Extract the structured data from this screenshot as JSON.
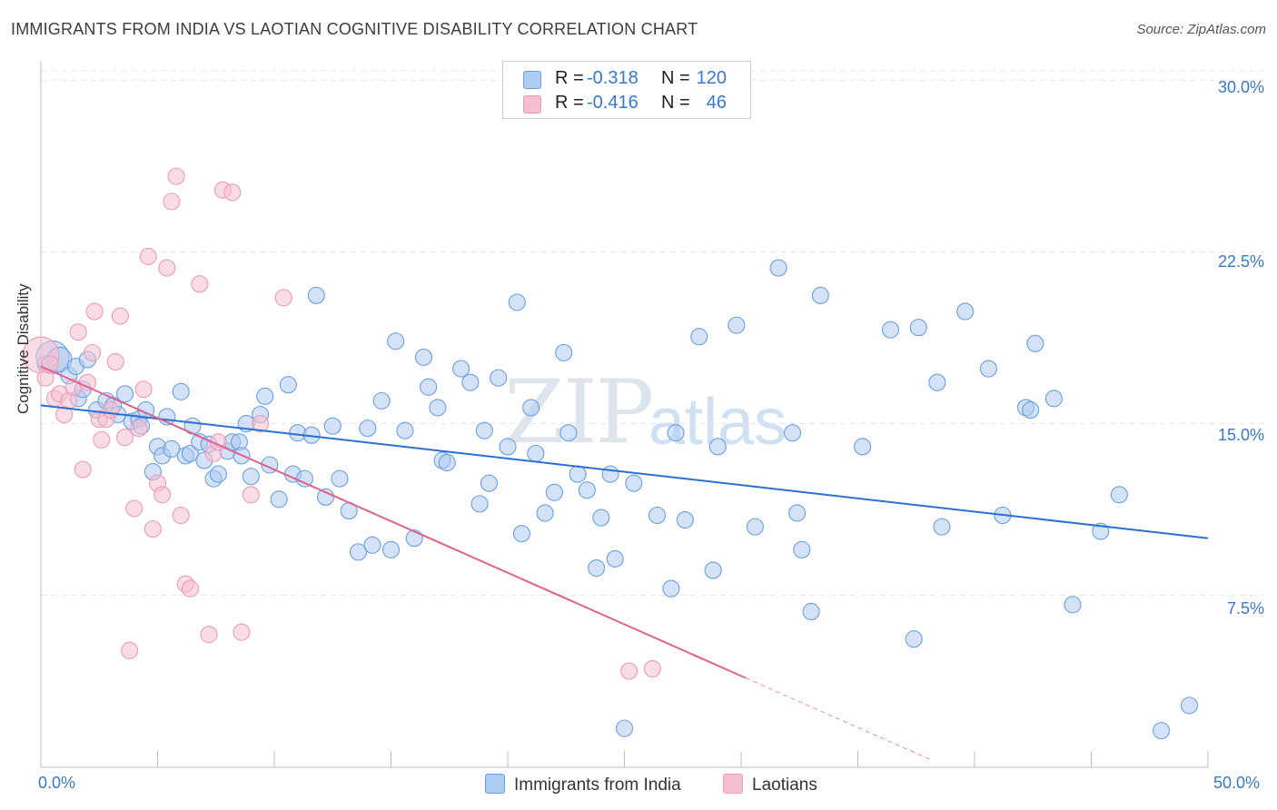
{
  "header": {
    "title": "IMMIGRANTS FROM INDIA VS LAOTIAN COGNITIVE DISABILITY CORRELATION CHART",
    "source": "Source: ZipAtlas.com"
  },
  "watermark": {
    "zip": "ZIP",
    "atlas": "atlas"
  },
  "legend": {
    "rows": [
      {
        "r_label": "R =",
        "r_value": "-0.318",
        "n_label": "N =",
        "n_value": "120",
        "color": "#aecbf0"
      },
      {
        "r_label": "R =",
        "r_value": "-0.416",
        "n_label": "N =",
        "n_value": "46",
        "color": "#f6bfd0"
      }
    ]
  },
  "bottom_legend": [
    {
      "label": "Immigrants from India",
      "color": "#aecbf0"
    },
    {
      "label": "Laotians",
      "color": "#f6bfd0"
    }
  ],
  "chart_data": {
    "type": "scatter",
    "title": "IMMIGRANTS FROM INDIA VS LAOTIAN COGNITIVE DISABILITY CORRELATION CHART",
    "xlabel": "",
    "ylabel": "Cognitive Disability",
    "xlim": [
      0,
      50
    ],
    "ylim": [
      0,
      30.8
    ],
    "x_tick_labels": [
      "0.0%",
      "50.0%"
    ],
    "y_ticks": [
      7.5,
      15.0,
      22.5,
      30.0
    ],
    "y_tick_labels": [
      "7.5%",
      "15.0%",
      "22.5%",
      "30.0%"
    ],
    "grid": true,
    "legend_position": "top-center",
    "series": [
      {
        "name": "Immigrants from India",
        "color": "#6a9fe0",
        "fill": "#aecbf0",
        "trend": {
          "x": [
            0,
            50
          ],
          "y": [
            15.8,
            10.0
          ],
          "color": "#2b6fd0"
        },
        "points": [
          [
            0.2,
            17.6,
            1
          ],
          [
            0.5,
            17.9,
            2
          ],
          [
            0.8,
            17.8,
            1.5
          ],
          [
            1.2,
            17.1,
            1
          ],
          [
            1.5,
            17.5,
            1
          ],
          [
            1.6,
            16.1,
            1
          ],
          [
            1.8,
            16.5,
            1
          ],
          [
            2.0,
            17.8,
            1
          ],
          [
            2.4,
            15.6,
            1
          ],
          [
            2.8,
            16.0,
            1
          ],
          [
            3.1,
            15.8,
            1
          ],
          [
            3.3,
            15.4,
            1
          ],
          [
            3.6,
            16.3,
            1
          ],
          [
            3.9,
            15.1,
            1
          ],
          [
            4.2,
            15.2,
            1
          ],
          [
            4.3,
            14.9,
            1
          ],
          [
            4.5,
            15.6,
            1
          ],
          [
            4.8,
            12.9,
            1
          ],
          [
            5.0,
            14.0,
            1
          ],
          [
            5.2,
            13.6,
            1
          ],
          [
            5.4,
            15.3,
            1
          ],
          [
            5.6,
            13.9,
            1
          ],
          [
            6.0,
            16.4,
            1
          ],
          [
            6.2,
            13.6,
            1
          ],
          [
            6.4,
            13.7,
            1
          ],
          [
            6.5,
            14.9,
            1
          ],
          [
            6.8,
            14.2,
            1
          ],
          [
            7.0,
            13.4,
            1
          ],
          [
            7.2,
            14.1,
            1
          ],
          [
            7.4,
            12.6,
            1
          ],
          [
            7.6,
            12.8,
            1
          ],
          [
            8.0,
            13.8,
            1
          ],
          [
            8.2,
            14.2,
            1
          ],
          [
            8.5,
            14.2,
            1
          ],
          [
            8.6,
            13.6,
            1
          ],
          [
            8.8,
            15.0,
            1
          ],
          [
            9.0,
            12.7,
            1
          ],
          [
            9.4,
            15.4,
            1
          ],
          [
            9.6,
            16.2,
            1
          ],
          [
            9.8,
            13.2,
            1
          ],
          [
            10.2,
            11.7,
            1
          ],
          [
            10.6,
            16.7,
            1
          ],
          [
            10.8,
            12.8,
            1
          ],
          [
            11.0,
            14.6,
            1
          ],
          [
            11.3,
            12.6,
            1
          ],
          [
            11.6,
            14.5,
            1
          ],
          [
            11.8,
            20.6,
            1
          ],
          [
            12.2,
            11.8,
            1
          ],
          [
            12.5,
            14.9,
            1
          ],
          [
            12.8,
            12.6,
            1
          ],
          [
            13.2,
            11.2,
            1
          ],
          [
            13.6,
            9.4,
            1
          ],
          [
            14.0,
            14.8,
            1
          ],
          [
            14.2,
            9.7,
            1
          ],
          [
            14.6,
            16.0,
            1
          ],
          [
            15.0,
            9.5,
            1
          ],
          [
            15.2,
            18.6,
            1
          ],
          [
            15.6,
            14.7,
            1
          ],
          [
            16.0,
            10.0,
            1
          ],
          [
            16.4,
            17.9,
            1
          ],
          [
            16.6,
            16.6,
            1
          ],
          [
            17.0,
            15.7,
            1
          ],
          [
            17.2,
            13.4,
            1
          ],
          [
            17.4,
            13.3,
            1
          ],
          [
            18.0,
            17.4,
            1
          ],
          [
            18.4,
            16.8,
            1
          ],
          [
            18.8,
            11.5,
            1
          ],
          [
            19.0,
            14.7,
            1
          ],
          [
            19.2,
            12.4,
            1
          ],
          [
            19.6,
            17.0,
            1
          ],
          [
            20.0,
            14.0,
            1
          ],
          [
            20.4,
            20.3,
            1
          ],
          [
            20.6,
            10.2,
            1
          ],
          [
            21.0,
            15.7,
            1
          ],
          [
            21.2,
            13.7,
            1
          ],
          [
            21.6,
            11.1,
            1
          ],
          [
            22.0,
            12.0,
            1
          ],
          [
            22.4,
            18.1,
            1
          ],
          [
            22.6,
            14.6,
            1
          ],
          [
            23.0,
            12.8,
            1
          ],
          [
            23.4,
            12.1,
            1
          ],
          [
            23.8,
            8.7,
            1
          ],
          [
            24.0,
            10.9,
            1
          ],
          [
            24.4,
            12.8,
            1
          ],
          [
            24.6,
            9.1,
            1
          ],
          [
            25.0,
            1.7,
            1
          ],
          [
            25.4,
            12.4,
            1
          ],
          [
            26.4,
            11.0,
            1
          ],
          [
            27.0,
            7.8,
            1
          ],
          [
            27.2,
            14.6,
            1
          ],
          [
            27.6,
            10.8,
            1
          ],
          [
            28.2,
            18.8,
            1
          ],
          [
            28.8,
            8.6,
            1
          ],
          [
            29.0,
            14.0,
            1
          ],
          [
            29.8,
            19.3,
            1
          ],
          [
            30.6,
            10.5,
            1
          ],
          [
            31.6,
            21.8,
            1
          ],
          [
            32.2,
            14.6,
            1
          ],
          [
            32.4,
            11.1,
            1
          ],
          [
            32.6,
            9.5,
            1
          ],
          [
            33.0,
            6.8,
            1
          ],
          [
            33.4,
            20.6,
            1
          ],
          [
            35.2,
            14.0,
            1
          ],
          [
            36.4,
            19.1,
            1
          ],
          [
            37.4,
            5.6,
            1
          ],
          [
            37.6,
            19.2,
            1
          ],
          [
            38.4,
            16.8,
            1
          ],
          [
            38.6,
            10.5,
            1
          ],
          [
            39.6,
            19.9,
            1
          ],
          [
            40.6,
            17.4,
            1
          ],
          [
            41.2,
            11.0,
            1
          ],
          [
            42.2,
            15.7,
            1
          ],
          [
            42.4,
            15.6,
            1
          ],
          [
            42.6,
            18.5,
            1
          ],
          [
            43.4,
            16.1,
            1
          ],
          [
            44.2,
            7.1,
            1
          ],
          [
            45.4,
            10.3,
            1
          ],
          [
            46.2,
            11.9,
            1
          ],
          [
            48.0,
            1.6,
            1
          ],
          [
            49.2,
            2.7,
            1
          ]
        ]
      },
      {
        "name": "Laotians",
        "color": "#ef9ab5",
        "fill": "#f6bfd0",
        "trend": {
          "x": [
            0,
            30.2
          ],
          "y": [
            17.5,
            3.9
          ],
          "color": "#e0608e"
        },
        "trend_extension": {
          "x": [
            30.2,
            38.2
          ],
          "y": [
            3.9,
            0.3
          ]
        },
        "points": [
          [
            0.0,
            18.0,
            2.2
          ],
          [
            0.2,
            17.0,
            1
          ],
          [
            0.4,
            17.6,
            1
          ],
          [
            0.6,
            16.1,
            1
          ],
          [
            0.8,
            16.3,
            1
          ],
          [
            1.0,
            15.4,
            1
          ],
          [
            1.2,
            16.0,
            1
          ],
          [
            1.4,
            16.6,
            1
          ],
          [
            1.6,
            19.0,
            1
          ],
          [
            1.8,
            13.0,
            1
          ],
          [
            2.0,
            16.8,
            1
          ],
          [
            2.2,
            18.1,
            1
          ],
          [
            2.3,
            19.9,
            1
          ],
          [
            2.5,
            15.2,
            1
          ],
          [
            2.6,
            14.3,
            1
          ],
          [
            2.8,
            15.2,
            1
          ],
          [
            3.0,
            15.6,
            1
          ],
          [
            3.2,
            17.7,
            1
          ],
          [
            3.4,
            19.7,
            1
          ],
          [
            3.6,
            14.4,
            1
          ],
          [
            3.8,
            5.1,
            1
          ],
          [
            4.0,
            11.3,
            1
          ],
          [
            4.2,
            14.8,
            1
          ],
          [
            4.4,
            16.5,
            1
          ],
          [
            4.6,
            22.3,
            1
          ],
          [
            4.8,
            10.4,
            1
          ],
          [
            5.0,
            12.4,
            1
          ],
          [
            5.2,
            11.9,
            1
          ],
          [
            5.4,
            21.8,
            1
          ],
          [
            5.6,
            24.7,
            1
          ],
          [
            5.8,
            25.8,
            1
          ],
          [
            6.0,
            11.0,
            1
          ],
          [
            6.2,
            8.0,
            1
          ],
          [
            6.4,
            7.8,
            1
          ],
          [
            6.8,
            21.1,
            1
          ],
          [
            7.2,
            5.8,
            1
          ],
          [
            7.4,
            13.7,
            1
          ],
          [
            7.6,
            14.2,
            1
          ],
          [
            7.8,
            25.2,
            1
          ],
          [
            8.2,
            25.1,
            1
          ],
          [
            8.6,
            5.9,
            1
          ],
          [
            9.0,
            11.9,
            1
          ],
          [
            9.4,
            15.0,
            1
          ],
          [
            10.4,
            20.5,
            1
          ],
          [
            25.2,
            4.2,
            1
          ],
          [
            26.2,
            4.3,
            1
          ]
        ]
      }
    ]
  }
}
